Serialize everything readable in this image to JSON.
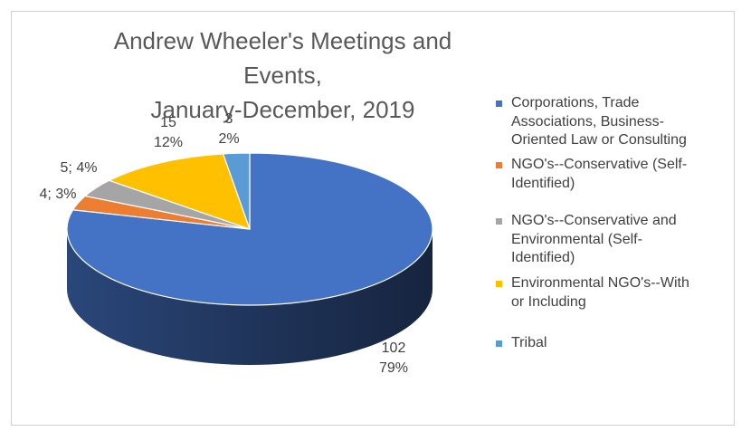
{
  "chart_data": {
    "type": "pie",
    "title": [
      "Andrew Wheeler's Meetings and Events,",
      "January-December, 2019"
    ],
    "slices": [
      {
        "name": "Corporations, Trade Associations, Business-Oriented Law or Consulting",
        "value": 102,
        "percent": "79%",
        "color": "#4472C4"
      },
      {
        "name": "NGO's--Conservative (Self-Identified)",
        "value": 4,
        "percent": "3%",
        "color": "#ED7D31"
      },
      {
        "name": "NGO's--Conservative and Environmental (Self-Identified)",
        "value": 5,
        "percent": "4%",
        "color": "#A5A5A5"
      },
      {
        "name": "Environmental NGO's--With or Including",
        "value": 15,
        "percent": "12%",
        "color": "#FFC000"
      },
      {
        "name": "Tribal",
        "value": 3,
        "percent": "2%",
        "color": "#5B9BD5"
      }
    ],
    "data_labels": [
      {
        "lines": [
          "102",
          "79%"
        ]
      },
      {
        "lines": [
          "4; 3%"
        ]
      },
      {
        "lines": [
          "5; 4%"
        ]
      },
      {
        "lines": [
          "15",
          "12%"
        ]
      },
      {
        "lines": [
          "3",
          "2%"
        ]
      }
    ],
    "legend_lines": [
      [
        "Corporations, Trade",
        "Associations, Business-",
        "Oriented Law or Consulting"
      ],
      [
        "NGO's--Conservative (Self-",
        "Identified)"
      ],
      [
        "NGO's--Conservative and",
        "Environmental (Self-",
        "Identified)"
      ],
      [
        "Environmental NGO's--With",
        "or Including"
      ],
      [
        "Tribal"
      ]
    ],
    "legend_position": "right",
    "style": "3d"
  }
}
